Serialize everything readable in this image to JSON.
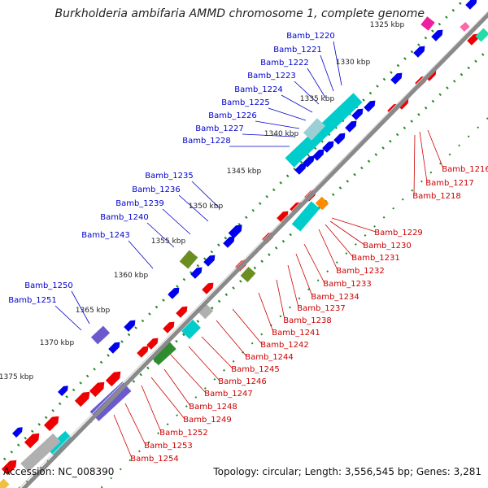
{
  "title": "Burkholderia ambifaria AMMD chromosome 1, complete genome",
  "footer": {
    "accession": "Accession: NC_008390",
    "summary": "Topology: circular; Length: 3,556,545 bp; Genes: 3,281"
  },
  "colors": {
    "backbone": "#8a8a8a",
    "plus_strand": "#0000ee",
    "minus_strand": "#ee0000",
    "cyan_feature": "#00cccc",
    "green_feature": "#2e8b2e",
    "purple_feature": "#6a5acd",
    "gray_feature": "#b0b0b0",
    "olive_feature": "#6b8e23",
    "pink_feature": "#ee1e9e",
    "orange_feature": "#ff8c00",
    "label_blue": "#0000cc",
    "label_red": "#cc0000",
    "tick_dots": "#228822"
  },
  "ticks": [
    "1325 kbp",
    "1330 kbp",
    "1335 kbp",
    "1340 kbp",
    "1345 kbp",
    "1350 kbp",
    "1355 kbp",
    "1360 kbp",
    "1365 kbp",
    "1370 kbp",
    "1375 kbp"
  ],
  "genes_upper": [
    "Bamb_1220",
    "Bamb_1221",
    "Bamb_1222",
    "Bamb_1223",
    "Bamb_1224",
    "Bamb_1225",
    "Bamb_1226",
    "Bamb_1227",
    "Bamb_1228",
    "Bamb_1235",
    "Bamb_1236",
    "Bamb_1239",
    "Bamb_1240",
    "Bamb_1243",
    "Bamb_1250",
    "Bamb_1251"
  ],
  "genes_lower": [
    "Bamb_1216",
    "Bamb_1217",
    "Bamb_1218",
    "Bamb_1229",
    "Bamb_1230",
    "Bamb_1231",
    "Bamb_1232",
    "Bamb_1233",
    "Bamb_1234",
    "Bamb_1237",
    "Bamb_1238",
    "Bamb_1241",
    "Bamb_1242",
    "Bamb_1244",
    "Bamb_1245",
    "Bamb_1246",
    "Bamb_1247",
    "Bamb_1248",
    "Bamb_1249",
    "Bamb_1252",
    "Bamb_1253",
    "Bamb_1254"
  ]
}
